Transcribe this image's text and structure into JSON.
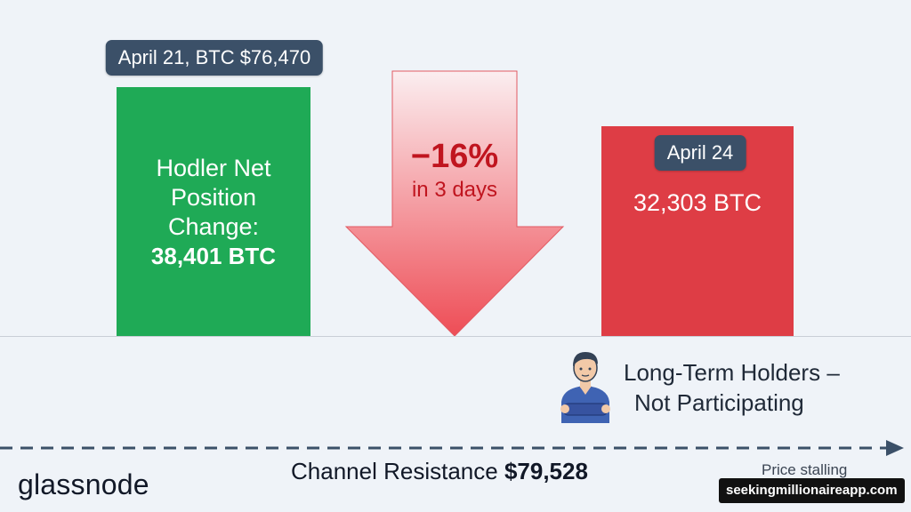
{
  "colors": {
    "background": "#eff3f8",
    "hodler_bar": "#1faa56",
    "decline_bar": "#de3d45",
    "arrow_top": "#fbeef0",
    "arrow_bottom": "#ee4d56",
    "tag_bg": "#3b5068",
    "dashed_line": "#3b5068"
  },
  "chart_data": {
    "type": "bar",
    "categories": [
      "April 21",
      "April 24"
    ],
    "series": [
      {
        "values": [
          38401,
          32303
        ]
      }
    ],
    "tags": [
      "April 21, BTC $76,470",
      "April 24"
    ],
    "bar_labels": {
      "left_lines": [
        "Hodler Net",
        "Position",
        "Change:"
      ],
      "left_value": "38,401 BTC",
      "right_value": "32,303 BTC"
    },
    "change": {
      "percent": "−16%",
      "period": "in 3 days"
    },
    "annotation": {
      "line1": "Long-Term Holders –",
      "line2": "Not Participating"
    },
    "resistance": {
      "label": "Channel Resistance",
      "value": "$79,528",
      "note": "Price stalling"
    }
  },
  "branding": {
    "logo": "glassnode",
    "watermark": "seekingmillionaireapp.com"
  },
  "icons": {
    "person": "person-arms-crossed-icon"
  }
}
